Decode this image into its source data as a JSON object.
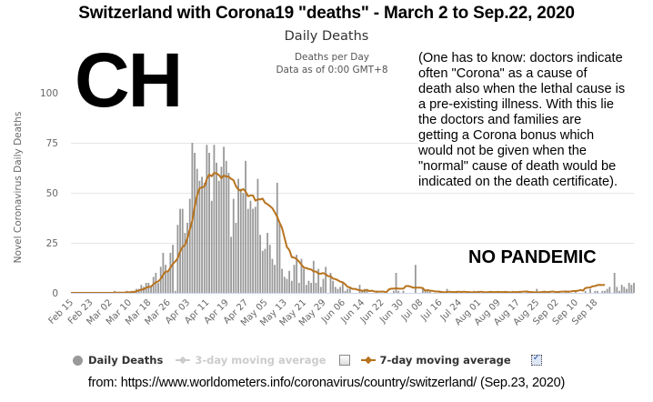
{
  "header": {
    "title": "Switzerland with Corona19 \"deaths\" - March 2 to Sep.22, 2020",
    "chart_title": "Daily Deaths",
    "country_code": "CH",
    "meta_line1": "Deaths per Day",
    "meta_line2": "Data as of 0:00 GMT+8"
  },
  "annotations": {
    "note": "(One has to know: doctors indicate\noften \"Corona\" as a cause of\ndeath also when the lethal cause is\na pre-existing illness. With this lie\nthe doctors and families are\ngetting a Corona bonus which\nwould not be given when the\n\"normal\" cause of death would be\nindicated on the death certificate).",
    "no_pandemic": "NO PANDEMIC"
  },
  "legend": {
    "daily_deaths": "Daily Deaths",
    "ma3": "3-day moving average",
    "ma3_checked": false,
    "ma7": "7-day moving average",
    "ma7_checked": true
  },
  "source": "from: https://www.worldometers.info/coronavirus/country/switzerland/ (Sep.23, 2020)",
  "colors": {
    "bars": "#999999",
    "ma7": "#b8731e",
    "ma3": "#cccccc",
    "grid": "#e6e6e6",
    "axis": "#ccd6eb"
  },
  "chart_data": {
    "type": "bar",
    "title": "Daily Deaths",
    "subtitle": "Deaths per Day / Data as of 0:00 GMT+8",
    "xlabel": "",
    "ylabel": "Novel Coronavirus Daily Deaths",
    "ylim": [
      0,
      100
    ],
    "yticks": [
      0,
      25,
      50,
      75,
      100
    ],
    "grid": true,
    "legend_position": "bottom",
    "start_date": "Feb 15",
    "end_date": "Sep 22",
    "xtick_labels": [
      "Feb 15",
      "Feb 23",
      "Mar 02",
      "Mar 10",
      "Mar 18",
      "Mar 26",
      "Apr 03",
      "Apr 11",
      "Apr 19",
      "Apr 27",
      "May 05",
      "May 13",
      "May 21",
      "May 29",
      "Jun 06",
      "Jun 14",
      "Jun 22",
      "Jun 30",
      "Jul 08",
      "Jul 16",
      "Jul 24",
      "Aug 01",
      "Aug 09",
      "Aug 17",
      "Aug 25",
      "Sep 02",
      "Sep 10",
      "Sep 18"
    ],
    "xtick_step_days": 8,
    "series": [
      {
        "name": "Daily Deaths",
        "kind": "bar",
        "values": [
          0,
          0,
          0,
          0,
          0,
          0,
          0,
          0,
          0,
          0,
          0,
          0,
          0,
          0,
          0,
          0,
          0,
          0,
          1,
          0,
          0,
          0,
          0,
          1,
          0,
          1,
          1,
          2,
          2,
          4,
          3,
          5,
          5,
          3,
          8,
          10,
          5,
          13,
          20,
          14,
          11,
          20,
          24,
          1,
          34,
          42,
          42,
          30,
          35,
          47,
          75,
          70,
          62,
          56,
          58,
          55,
          74,
          70,
          46,
          74,
          65,
          56,
          63,
          73,
          66,
          60,
          28,
          47,
          35,
          57,
          52,
          50,
          66,
          42,
          46,
          42,
          43,
          57,
          29,
          21,
          22,
          30,
          24,
          17,
          14,
          55,
          35,
          12,
          8,
          7,
          11,
          6,
          14,
          19,
          5,
          17,
          12,
          4,
          6,
          5,
          16,
          5,
          12,
          3,
          7,
          13,
          0,
          10,
          6,
          3,
          2,
          3,
          5,
          1,
          2,
          3,
          0,
          0,
          0,
          4,
          1,
          2,
          2,
          0,
          0,
          0,
          1,
          0,
          0,
          0,
          0,
          0,
          0,
          1,
          10,
          1,
          0,
          1,
          0,
          0,
          0,
          0,
          14,
          0,
          0,
          2,
          1,
          1,
          1,
          0,
          0,
          0,
          1,
          0,
          0,
          2,
          0,
          0,
          0,
          1,
          0,
          0,
          0,
          0,
          0,
          0,
          1,
          0,
          1,
          0,
          0,
          0,
          0,
          1,
          0,
          0,
          1,
          0,
          0,
          1,
          0,
          0,
          1,
          0,
          0,
          1,
          0,
          0,
          1,
          0,
          0,
          0,
          2,
          0,
          0,
          1,
          0,
          1,
          0,
          0,
          0,
          1,
          0,
          0,
          1,
          1,
          0,
          0,
          1,
          0,
          0,
          0,
          1,
          0,
          2,
          0,
          1,
          1,
          0,
          1,
          1,
          2,
          3,
          0,
          10,
          3,
          1,
          4,
          3,
          2,
          5,
          4,
          5
        ]
      },
      {
        "name": "7-day moving average",
        "kind": "line",
        "values": [
          0,
          0,
          0,
          0,
          0,
          0,
          0,
          0,
          0,
          0,
          0,
          0,
          0,
          0,
          0,
          0,
          0,
          0,
          0.1,
          0.1,
          0.1,
          0.1,
          0.1,
          0.3,
          0.3,
          0.4,
          0.4,
          0.8,
          1.2,
          1.6,
          1.8,
          2.6,
          3,
          3.1,
          4.3,
          5.3,
          5.7,
          7,
          9.1,
          10.6,
          10.7,
          12.6,
          14.4,
          15.7,
          17.3,
          20.6,
          23,
          23.9,
          27.3,
          31.7,
          36,
          43.1,
          48.7,
          52.3,
          52.7,
          53.1,
          56.9,
          59.1,
          58.3,
          59.9,
          59.7,
          58.9,
          57.3,
          58.7,
          58.1,
          58.1,
          57,
          56.3,
          53.3,
          51.6,
          51.1,
          51.9,
          50.6,
          48.3,
          48.7,
          48.7,
          46.1,
          46.7,
          46.7,
          47.1,
          45,
          44.3,
          43.4,
          42.3,
          40.3,
          38,
          35,
          32.4,
          27.6,
          22.9,
          21.4,
          17.9,
          17.6,
          16.9,
          15.6,
          14.1,
          12.6,
          12.4,
          11.9,
          11.7,
          10.7,
          10.7,
          9.6,
          9.6,
          9.9,
          9.3,
          8.3,
          8.4,
          7.1,
          6.9,
          6.3,
          5.6,
          5.3,
          4.3,
          3,
          2.7,
          2,
          2,
          1.6,
          1.3,
          1.1,
          1.1,
          1.4,
          0.9,
          1.1,
          0.7,
          0.6,
          0.6,
          0.6,
          0.6,
          0.3,
          1.7,
          2.1,
          2.1,
          2.3,
          2.1,
          2.1,
          2.1,
          3.4,
          3.4,
          3.1,
          2.6,
          2.6,
          2.6,
          2.6,
          2.4,
          1.1,
          1.4,
          1.1,
          1,
          0.7,
          0.7,
          0.6,
          0.4,
          0.3,
          0.4,
          0.6,
          0.4,
          0.4,
          0.4,
          0.6,
          0.4,
          0.6,
          0.4,
          0.4,
          0.3,
          0.3,
          0.4,
          0.3,
          0.6,
          0.4,
          0.3,
          0.4,
          0.4,
          0.4,
          0.4,
          0.4,
          0.4,
          0.4,
          0.4,
          0.4,
          0.3,
          0.3,
          0.4,
          0.4,
          0.4,
          0.6,
          0.6,
          0.7,
          0.4,
          0.4,
          0.3,
          0.3,
          0.3,
          0.4,
          0.6,
          0.4,
          0.4,
          0.6,
          0.6,
          0.4,
          0.4,
          0.6,
          0.6,
          0.7,
          0.6,
          0.7,
          0.9,
          0.9,
          1.1,
          1.4,
          1.1,
          2.4,
          2.6,
          2.7,
          3.3,
          3.4,
          3.9,
          4,
          3.9,
          4
        ]
      },
      {
        "name": "3-day moving average",
        "kind": "line",
        "visible": false,
        "values": []
      }
    ]
  }
}
